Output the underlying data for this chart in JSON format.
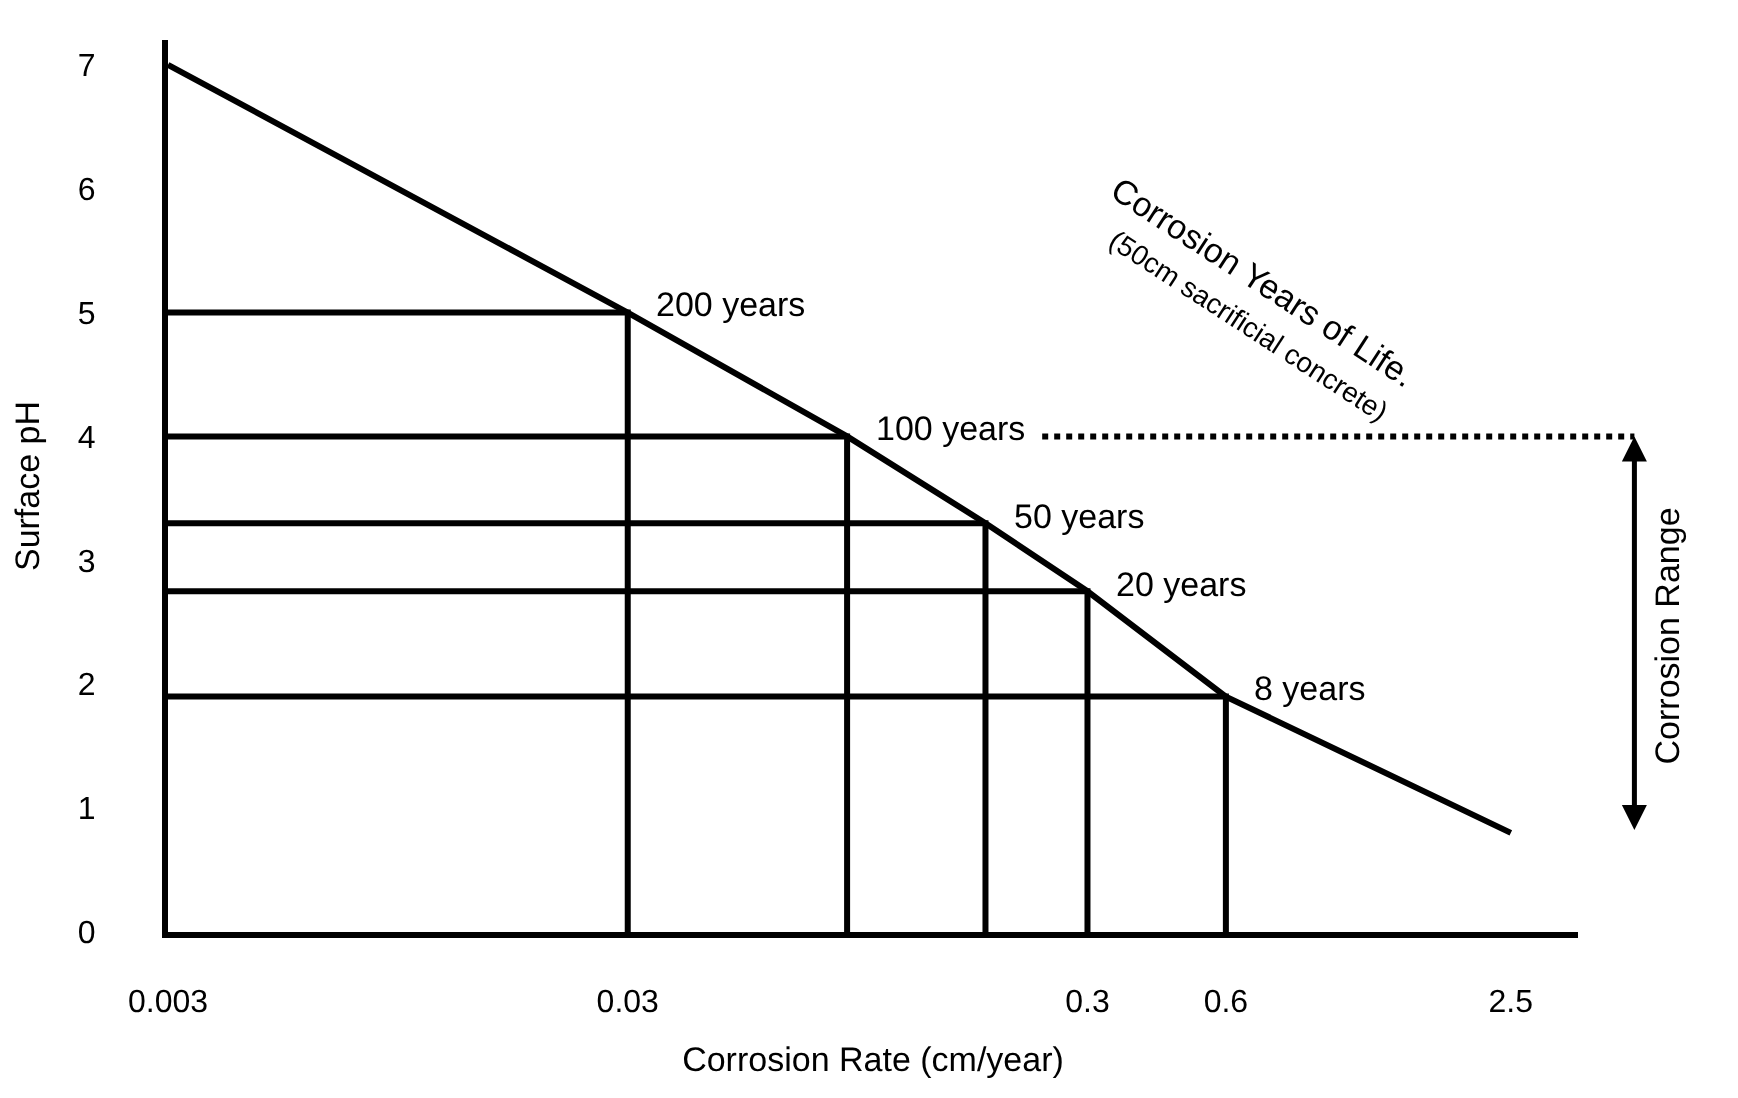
{
  "chart_data": {
    "type": "line",
    "xlabel": "Corrosion Rate (cm/year)",
    "ylabel": "Surface pH",
    "log": "x",
    "xlim": [
      0.003,
      3.5
    ],
    "ylim": [
      0,
      7.2
    ],
    "xticks": [
      0.003,
      0.03,
      0.3,
      0.6,
      2.5
    ],
    "yticks": [
      0,
      1,
      2,
      3,
      4,
      5,
      6,
      7
    ],
    "marker": "none",
    "line_style": "solid",
    "series": [
      {
        "color": "#000000",
        "x": [
          0.003,
          0.03,
          0.09,
          0.18,
          0.3,
          0.6,
          2.5
        ],
        "values": [
          7,
          5,
          4,
          3.3,
          2.75,
          1.9,
          0.8
        ]
      },
      {
        "color": "#000000",
        "x": [
          0.003,
          0.03,
          0.03
        ],
        "values": [
          5,
          5,
          0
        ]
      },
      {
        "color": "#000000",
        "x": [
          0.003,
          0.09,
          0.09
        ],
        "values": [
          4,
          4,
          0
        ]
      },
      {
        "color": "#000000",
        "x": [
          0.003,
          0.18,
          0.18
        ],
        "values": [
          3.3,
          3.3,
          0
        ]
      },
      {
        "color": "#000000",
        "x": [
          0.003,
          0.3,
          0.3
        ],
        "values": [
          2.75,
          2.75,
          0
        ]
      },
      {
        "color": "#000000",
        "x": [
          0.003,
          0.6,
          0.6
        ],
        "values": [
          1.9,
          1.9,
          0
        ]
      }
    ],
    "ref_lines": [
      {
        "axis": "y",
        "value": 4,
        "color": "#000000",
        "line_style": "dotted"
      }
    ],
    "annotations": [
      {
        "text": "200 years",
        "x": 0.03,
        "y": 5
      },
      {
        "text": "100 years",
        "x": 0.09,
        "y": 4
      },
      {
        "text": "50 years",
        "x": 0.18,
        "y": 3.3
      },
      {
        "text": "20 years",
        "x": 0.3,
        "y": 2.75
      },
      {
        "text": "8 years",
        "x": 0.6,
        "y": 1.9
      },
      "Corrosion Years of Life.",
      "(50cm sacrificial concrete)",
      "Corrosion Range"
    ]
  }
}
